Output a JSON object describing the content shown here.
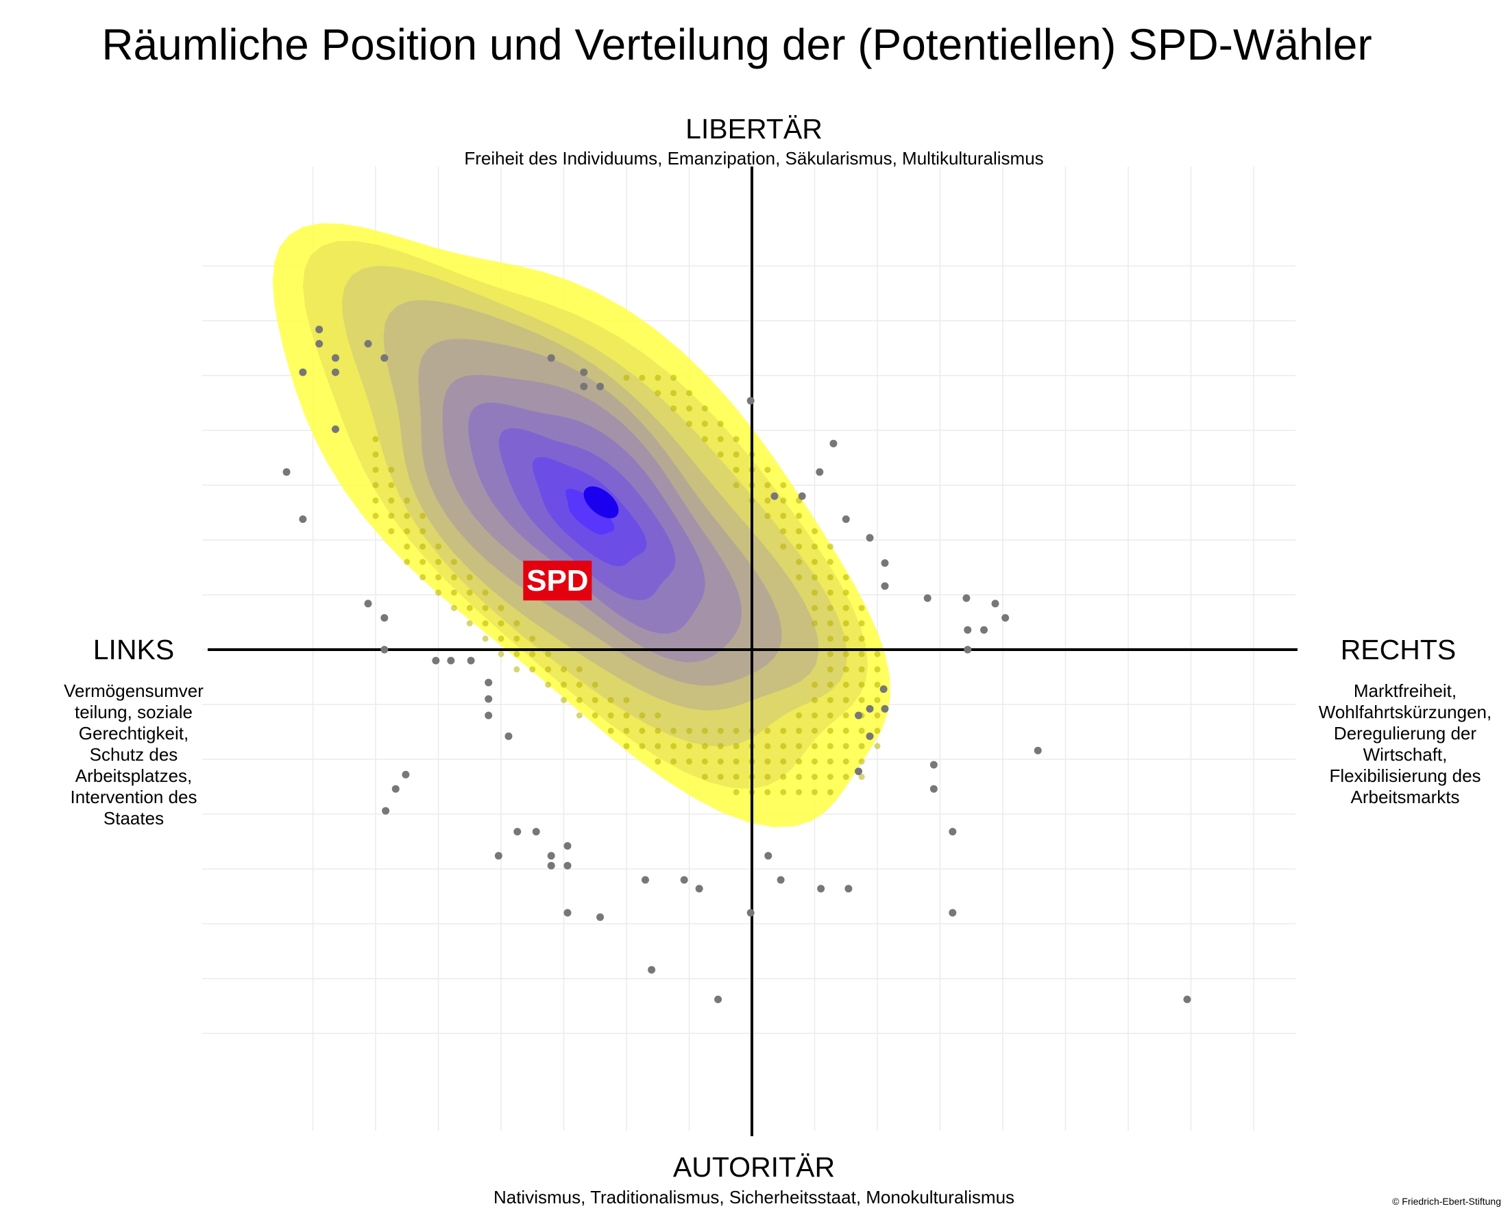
{
  "chart_data": {
    "type": "scatter",
    "title": "Räumliche Position und Verteilung der (Potentiellen) SPD-Wähler",
    "axes": {
      "top": {
        "label": "LIBERTÄR",
        "description": "Freiheit des Individuums, Emanzipation, Säkularismus, Multikulturalismus"
      },
      "bottom": {
        "label": "AUTORITÄR",
        "description": "Nativismus, Traditionalismus, Sicherheitsstaat, Monokulturalismus"
      },
      "left": {
        "label": "LINKS",
        "description_lines": [
          "Vermögensumver",
          "teilung, soziale",
          "Gerechtigkeit,",
          "Schutz des",
          "Arbeitsplatzes,",
          "Intervention des",
          "Staates"
        ]
      },
      "right": {
        "label": "RECHTS",
        "description_lines": [
          "Marktfreiheit,",
          "Wohlfahrtskürzungen,",
          "Deregulierung der",
          "Wirtschaft,",
          "Flexibilisierung des",
          "Arbeitsmarkts"
        ]
      }
    },
    "xlim": [
      -4.0,
      4.0
    ],
    "ylim": [
      -3.9,
      3.9
    ],
    "grid": true,
    "density": {
      "center": [
        -1.3,
        1.25
      ],
      "sd": [
        1.05,
        1.15
      ],
      "correlation": -0.68,
      "levels": 10,
      "color_low": "#ffff44",
      "color_high": "#5533ff",
      "peak_color": "#1a00ee"
    },
    "party_marker": {
      "label": "SPD",
      "x": -1.55,
      "y": 0.63,
      "color": "#e3000f"
    },
    "points": [
      [
        -3.45,
        2.92
      ],
      [
        -3.45,
        2.79
      ],
      [
        -3.32,
        2.66
      ],
      [
        -3.06,
        2.79
      ],
      [
        -2.93,
        2.66
      ],
      [
        -3.58,
        2.53
      ],
      [
        -3.32,
        2.53
      ],
      [
        -1.6,
        2.66
      ],
      [
        -1.34,
        2.53
      ],
      [
        -1.34,
        2.4
      ],
      [
        -1.21,
        2.4
      ],
      [
        -3.32,
        2.01
      ],
      [
        -3.71,
        1.62
      ],
      [
        -3.58,
        1.19
      ],
      [
        -0.01,
        2.27
      ],
      [
        0.65,
        1.88
      ],
      [
        0.54,
        1.62
      ],
      [
        0.4,
        1.4
      ],
      [
        0.18,
        1.4
      ],
      [
        0.75,
        1.19
      ],
      [
        0.94,
        1.02
      ],
      [
        1.06,
        0.79
      ],
      [
        1.06,
        0.58
      ],
      [
        1.4,
        0.47
      ],
      [
        1.71,
        0.47
      ],
      [
        1.94,
        0.42
      ],
      [
        2.02,
        0.29
      ],
      [
        1.85,
        0.18
      ],
      [
        1.72,
        0.18
      ],
      [
        1.72,
        0.0
      ],
      [
        -3.06,
        0.42
      ],
      [
        -2.93,
        0.29
      ],
      [
        -2.93,
        0.0
      ],
      [
        -2.52,
        -0.1
      ],
      [
        -2.4,
        -0.1
      ],
      [
        -2.24,
        -0.1
      ],
      [
        -2.1,
        -0.3
      ],
      [
        -2.1,
        -0.45
      ],
      [
        -2.1,
        -0.6
      ],
      [
        -1.94,
        -0.79
      ],
      [
        1.05,
        -0.36
      ],
      [
        0.94,
        -0.54
      ],
      [
        1.06,
        -0.54
      ],
      [
        0.85,
        -0.6
      ],
      [
        0.94,
        -0.79
      ],
      [
        2.28,
        -0.92
      ],
      [
        1.45,
        -1.05
      ],
      [
        0.85,
        -1.11
      ],
      [
        1.45,
        -1.27
      ],
      [
        -2.76,
        -1.14
      ],
      [
        -2.84,
        -1.27
      ],
      [
        -2.92,
        -1.47
      ],
      [
        -1.87,
        -1.66
      ],
      [
        -1.72,
        -1.66
      ],
      [
        -2.02,
        -1.88
      ],
      [
        -1.6,
        -1.88
      ],
      [
        -1.47,
        -1.79
      ],
      [
        -1.47,
        -1.97
      ],
      [
        -1.6,
        -1.97
      ],
      [
        -0.85,
        -2.1
      ],
      [
        -0.54,
        -2.1
      ],
      [
        -0.42,
        -2.18
      ],
      [
        0.13,
        -1.88
      ],
      [
        0.23,
        -2.1
      ],
      [
        0.55,
        -2.18
      ],
      [
        0.77,
        -2.18
      ],
      [
        -1.47,
        -2.4
      ],
      [
        -1.21,
        -2.44
      ],
      [
        -0.01,
        -2.4
      ],
      [
        1.6,
        -2.4
      ],
      [
        1.6,
        -1.66
      ],
      [
        -0.8,
        -2.92
      ],
      [
        -0.27,
        -3.19
      ],
      [
        3.47,
        -3.19
      ]
    ]
  },
  "party_logo_text": "SPD",
  "copyright": "© Friedrich-Ebert-Stiftung",
  "colors": {
    "point": "#777777",
    "yellow_point": "#b8b000",
    "axis": "#000000",
    "grid": "#ebebeb"
  }
}
